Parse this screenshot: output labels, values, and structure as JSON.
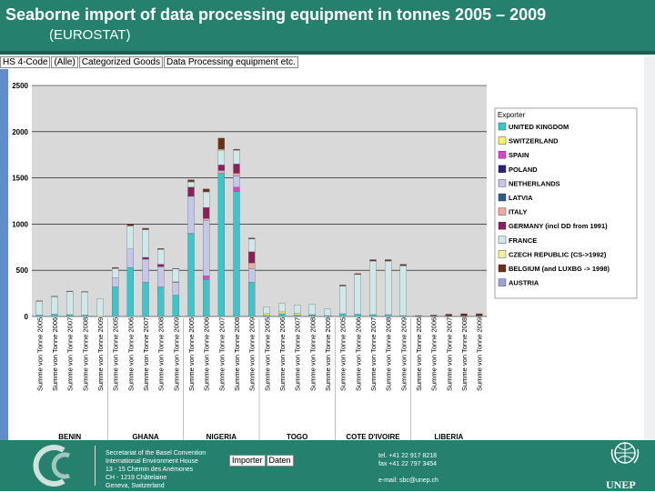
{
  "title": "Seaborne import of data processing equipment in tonnes 2005 – 2009",
  "subtitle": "(EUROSTAT)",
  "filter_buttons": [
    "HS 4-Code",
    "(Alle)",
    "Categorized Goods",
    "Data Processing equipment etc."
  ],
  "footer": {
    "address": "Secretariat of the Basel Convention\nInternational Environment House\n13 - 15 Chemin des Anémones\nCH - 1219 Châtelaine\nGeneva, Switzerland",
    "contact": "tel. +41 22 917 8218\nfax +41 22 797 3454\n\ne-mail: sbc@unep.ch",
    "buttons": [
      "Importer",
      "Daten"
    ],
    "logo_text": "UNEP"
  },
  "colors": {
    "title_bg": "#25816e",
    "plot_bg": "#d9d9d9",
    "chart_bg": "#ffffff"
  },
  "chart_data": {
    "type": "bar",
    "stacked": true,
    "ylim": [
      0,
      2500
    ],
    "yticks": [
      0,
      500,
      1000,
      1500,
      2000,
      2500
    ],
    "grid": true,
    "legend_position": "right",
    "legend_title": "Exporter",
    "x_label_pattern": "Summe von Tonne",
    "importers": [
      {
        "name": "BENIN",
        "years": [
          "2005",
          "2006",
          "2007",
          "2008",
          "2009"
        ]
      },
      {
        "name": "GHANA",
        "years": [
          "2005",
          "2006",
          "2007",
          "2008",
          "2009"
        ]
      },
      {
        "name": "NIGERIA",
        "years": [
          "2005",
          "2006",
          "2007",
          "2008",
          "2009"
        ]
      },
      {
        "name": "TOGO",
        "years": [
          "2005",
          "2006",
          "2007",
          "2008",
          "2009"
        ]
      },
      {
        "name": "COTE D'IVOIRE",
        "years": [
          "2005",
          "2006",
          "2007",
          "2008",
          "2009"
        ]
      },
      {
        "name": "LIBERIA",
        "years": [
          "2005",
          "2006",
          "2007",
          "2008",
          "2009"
        ]
      }
    ],
    "series": [
      {
        "name": "UNITED KINGDOM",
        "color": "#3cc6cc",
        "values": [
          15,
          25,
          20,
          15,
          0,
          320,
          530,
          370,
          320,
          230,
          900,
          400,
          1550,
          1350,
          370,
          10,
          30,
          15,
          15,
          10,
          30,
          25,
          20,
          20,
          10,
          5,
          5,
          5,
          5,
          5
        ]
      },
      {
        "name": "SWITZERLAND",
        "color": "#f3f06a",
        "values": [
          0,
          0,
          0,
          0,
          0,
          0,
          0,
          0,
          0,
          0,
          0,
          0,
          0,
          0,
          0,
          20,
          20,
          20,
          5,
          0,
          0,
          0,
          0,
          0,
          0,
          0,
          0,
          0,
          0,
          0
        ]
      },
      {
        "name": "SPAIN",
        "color": "#d843d0",
        "values": [
          0,
          0,
          0,
          0,
          0,
          0,
          0,
          0,
          0,
          0,
          0,
          40,
          0,
          50,
          0,
          0,
          0,
          0,
          0,
          0,
          0,
          0,
          0,
          0,
          0,
          0,
          0,
          0,
          0,
          0
        ]
      },
      {
        "name": "POLAND",
        "color": "#2b1f7a",
        "values": [
          0,
          0,
          0,
          0,
          0,
          0,
          0,
          0,
          0,
          0,
          0,
          0,
          0,
          0,
          0,
          0,
          0,
          0,
          0,
          0,
          0,
          0,
          0,
          0,
          0,
          0,
          0,
          0,
          0,
          0
        ]
      },
      {
        "name": "NETHERLANDS",
        "color": "#c4c6ea",
        "values": [
          0,
          0,
          0,
          0,
          0,
          100,
          200,
          250,
          220,
          140,
          400,
          600,
          0,
          120,
          150,
          0,
          0,
          0,
          0,
          0,
          0,
          0,
          0,
          0,
          0,
          0,
          0,
          0,
          0,
          0
        ]
      },
      {
        "name": "LATVIA",
        "color": "#2f5d8a",
        "values": [
          0,
          0,
          0,
          0,
          0,
          0,
          0,
          0,
          0,
          0,
          0,
          0,
          0,
          0,
          0,
          0,
          0,
          0,
          0,
          0,
          0,
          0,
          0,
          0,
          0,
          0,
          0,
          0,
          0,
          0
        ]
      },
      {
        "name": "ITALY",
        "color": "#f2a7a0",
        "values": [
          0,
          0,
          0,
          0,
          0,
          0,
          0,
          0,
          0,
          0,
          0,
          20,
          30,
          30,
          60,
          0,
          0,
          0,
          0,
          0,
          0,
          0,
          0,
          0,
          0,
          0,
          0,
          0,
          0,
          0
        ]
      },
      {
        "name": "GERMANY (incl DD from 1991)",
        "color": "#8a1f5c",
        "values": [
          0,
          0,
          0,
          0,
          0,
          0,
          0,
          20,
          25,
          5,
          100,
          120,
          60,
          100,
          120,
          0,
          0,
          0,
          0,
          0,
          0,
          0,
          0,
          0,
          0,
          0,
          0,
          0,
          0,
          0
        ]
      },
      {
        "name": "FRANCE",
        "color": "#cfe8ea",
        "values": [
          150,
          190,
          250,
          250,
          190,
          100,
          250,
          300,
          160,
          140,
          50,
          160,
          160,
          150,
          140,
          70,
          90,
          90,
          110,
          70,
          300,
          430,
          580,
          580,
          540,
          0,
          0,
          0,
          0,
          0
        ]
      },
      {
        "name": "CZECH REPUBLIC (CS->1992)",
        "color": "#f6ef9e",
        "values": [
          0,
          0,
          0,
          0,
          0,
          0,
          0,
          0,
          0,
          0,
          10,
          10,
          10,
          0,
          0,
          0,
          0,
          0,
          0,
          0,
          0,
          0,
          0,
          0,
          0,
          0,
          0,
          0,
          0,
          0
        ]
      },
      {
        "name": "BELGIUM (and LUXBG -> 1998)",
        "color": "#6b3018",
        "values": [
          5,
          5,
          5,
          5,
          0,
          10,
          20,
          15,
          10,
          5,
          20,
          30,
          120,
          10,
          10,
          0,
          0,
          0,
          0,
          0,
          10,
          10,
          15,
          15,
          15,
          5,
          10,
          20,
          25,
          25
        ]
      },
      {
        "name": "AUSTRIA",
        "color": "#9aa2d8",
        "values": [
          0,
          0,
          0,
          0,
          0,
          0,
          0,
          0,
          0,
          0,
          0,
          0,
          0,
          0,
          0,
          0,
          0,
          0,
          0,
          0,
          0,
          0,
          0,
          0,
          0,
          0,
          0,
          0,
          0,
          0
        ]
      }
    ]
  }
}
